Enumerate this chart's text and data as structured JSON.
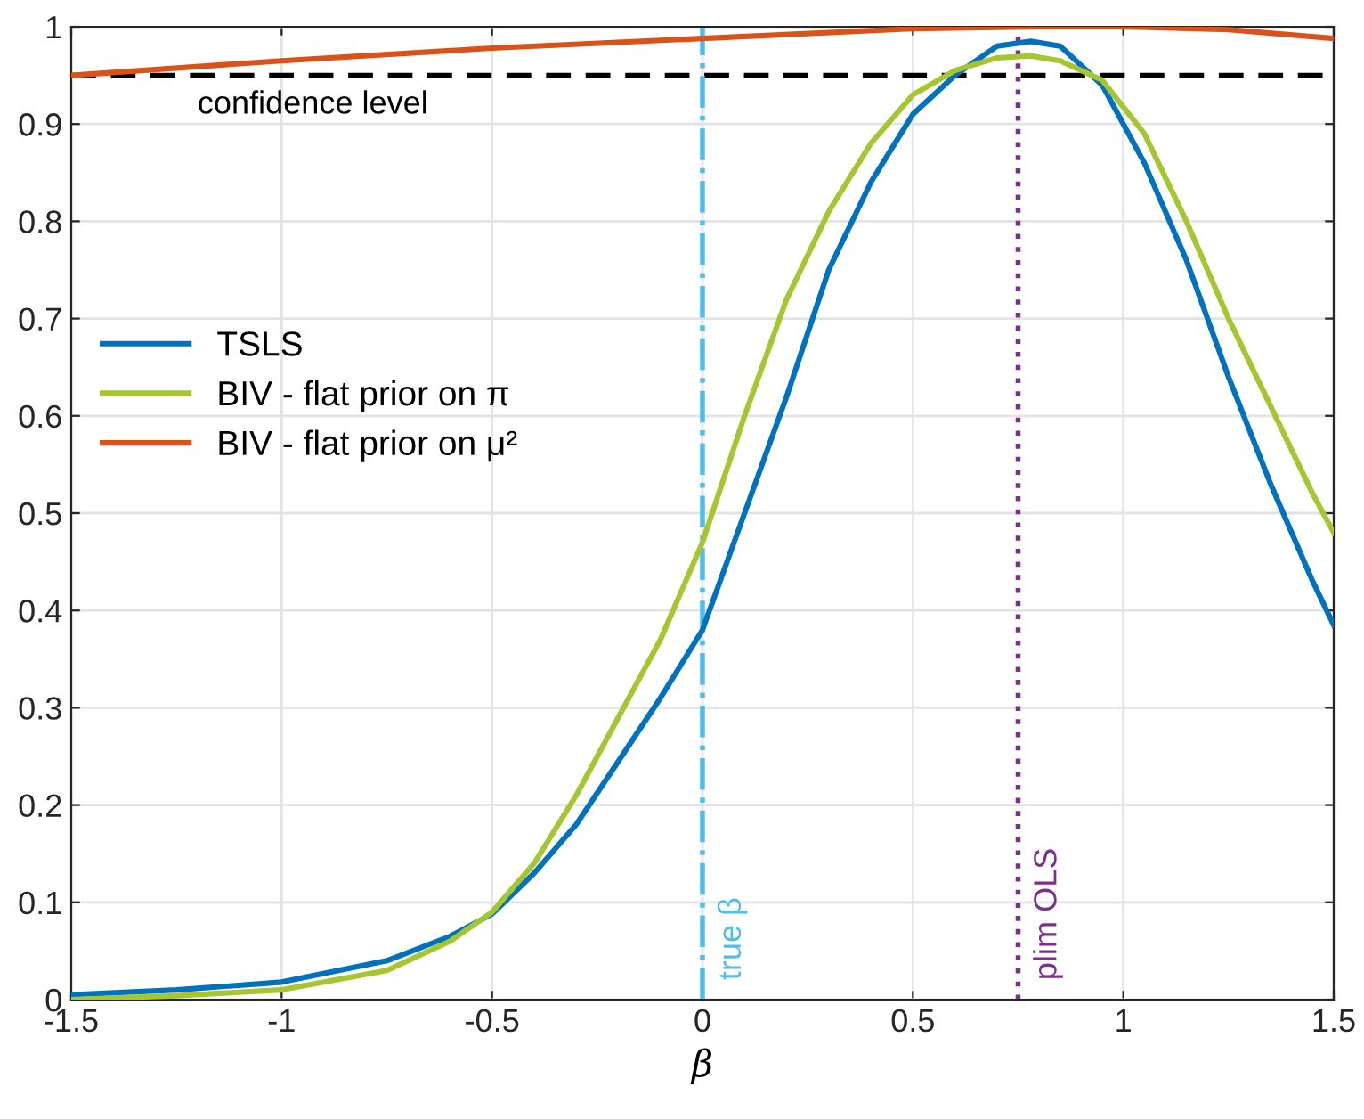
{
  "chart_data": {
    "type": "line",
    "xlabel": "β",
    "xlim": [
      -1.5,
      1.5
    ],
    "ylim": [
      0,
      1
    ],
    "xticks": [
      -1.5,
      -1,
      -0.5,
      0,
      0.5,
      1,
      1.5
    ],
    "yticks": [
      0,
      0.1,
      0.2,
      0.3,
      0.4,
      0.5,
      0.6,
      0.7,
      0.8,
      0.9,
      1
    ],
    "grid": true,
    "legend": "left",
    "line_style": "solid",
    "marker": "none",
    "series": [
      {
        "name": "TSLS",
        "color": "#0072bd",
        "x": [
          -1.5,
          -1.25,
          -1.0,
          -0.75,
          -0.6,
          -0.5,
          -0.4,
          -0.3,
          -0.2,
          -0.1,
          0,
          0.1,
          0.2,
          0.3,
          0.4,
          0.5,
          0.6,
          0.7,
          0.78,
          0.85,
          0.95,
          1.05,
          1.15,
          1.25,
          1.35,
          1.45,
          1.5
        ],
        "values": [
          0.005,
          0.01,
          0.018,
          0.04,
          0.065,
          0.088,
          0.13,
          0.18,
          0.245,
          0.31,
          0.38,
          0.5,
          0.62,
          0.75,
          0.84,
          0.91,
          0.95,
          0.98,
          0.985,
          0.98,
          0.94,
          0.86,
          0.76,
          0.64,
          0.53,
          0.43,
          0.385
        ]
      },
      {
        "name": "BIV - flat prior on π",
        "color": "#a5c631",
        "x": [
          -1.5,
          -1.25,
          -1.0,
          -0.75,
          -0.6,
          -0.5,
          -0.4,
          -0.3,
          -0.2,
          -0.1,
          0,
          0.1,
          0.2,
          0.3,
          0.4,
          0.5,
          0.6,
          0.7,
          0.78,
          0.85,
          0.95,
          1.05,
          1.15,
          1.25,
          1.35,
          1.45,
          1.5
        ],
        "values": [
          0.0,
          0.004,
          0.01,
          0.03,
          0.06,
          0.09,
          0.14,
          0.21,
          0.29,
          0.37,
          0.47,
          0.6,
          0.72,
          0.81,
          0.88,
          0.93,
          0.955,
          0.968,
          0.97,
          0.965,
          0.945,
          0.89,
          0.8,
          0.7,
          0.61,
          0.52,
          0.48
        ]
      },
      {
        "name": "BIV - flat prior on μ²",
        "color": "#d95319",
        "x": [
          -1.5,
          -1.0,
          -0.5,
          0,
          0.5,
          0.8,
          1.0,
          1.25,
          1.5
        ],
        "values": [
          0.95,
          0.965,
          0.978,
          0.988,
          0.998,
          1.0,
          1.0,
          0.997,
          0.988
        ]
      }
    ],
    "ref_lines": [
      {
        "axis": "y",
        "value": 0.95,
        "label": "confidence level",
        "color": "#000000",
        "line_style": "dashed"
      },
      {
        "axis": "x",
        "value": 0,
        "label": "true β",
        "color": "#4dbeee",
        "line_style": "dashdot"
      },
      {
        "axis": "x",
        "value": 0.75,
        "label": "plim OLS",
        "color": "#7e2f8e",
        "line_style": "dotted"
      }
    ]
  }
}
